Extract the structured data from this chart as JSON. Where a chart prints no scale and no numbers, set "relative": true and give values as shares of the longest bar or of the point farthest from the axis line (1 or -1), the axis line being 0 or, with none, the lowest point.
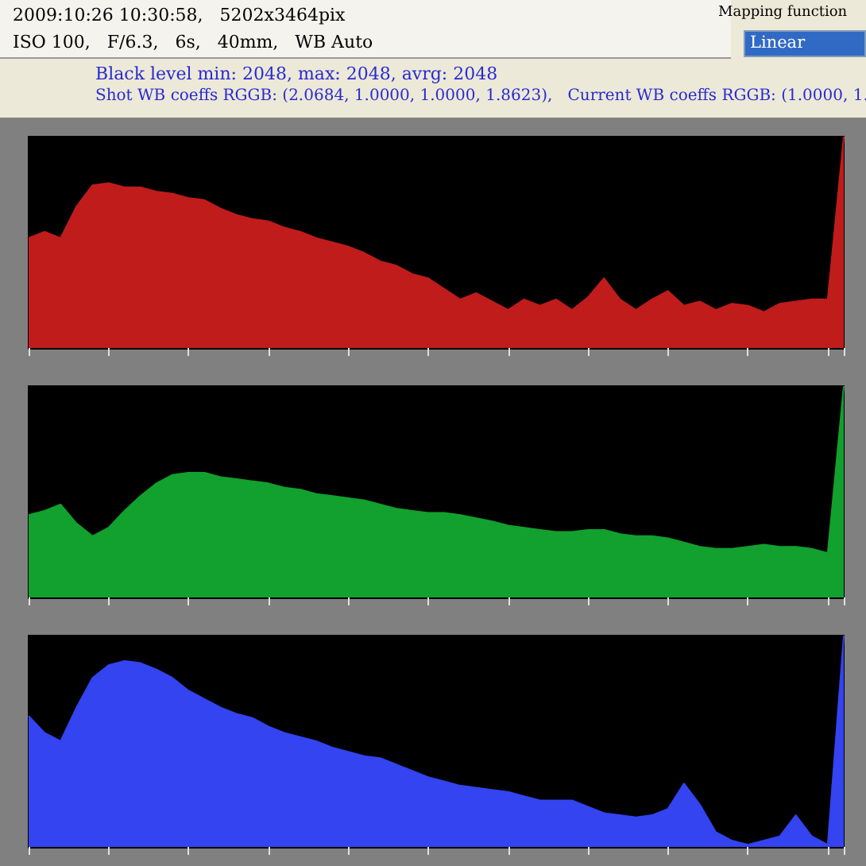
{
  "chart_data": [
    {
      "type": "other",
      "annotations": [
        "2009:10:26 10:30:58,   5202x3464pix",
        "ISO 100,   F/6.3,   6s,   40mm,   WB Auto",
        "Black level min: 2048, max: 2048, avrg: 2048",
        "Shot WB coeffs RGGB: (2.0684, 1.0000, 1.0000, 1.8623),   Current WB coeffs RGGB: (1.0000, 1.",
        "Mapping function",
        "Linear"
      ]
    },
    {
      "type": "area",
      "relative": true,
      "tick_labels": false,
      "categories": [
        null,
        null,
        null,
        null,
        null,
        null,
        null,
        null,
        null,
        null,
        null,
        null,
        null,
        null,
        null,
        null,
        null,
        null,
        null,
        null,
        null,
        null,
        null,
        null,
        null,
        null,
        null,
        null,
        null,
        null,
        null,
        null,
        null,
        null,
        null,
        null,
        null,
        null,
        null,
        null,
        null,
        null,
        null,
        null,
        null,
        null,
        null,
        null,
        null,
        null,
        null,
        null
      ],
      "series": [
        {
          "color": "#c01c1c",
          "values": [
            0.52,
            0.55,
            0.52,
            0.67,
            0.77,
            0.78,
            0.76,
            0.76,
            0.74,
            0.73,
            0.71,
            0.7,
            0.66,
            0.63,
            0.61,
            0.6,
            0.57,
            0.55,
            0.52,
            0.5,
            0.48,
            0.45,
            0.41,
            0.39,
            0.35,
            0.33,
            0.28,
            0.23,
            0.26,
            0.22,
            0.18,
            0.23,
            0.2,
            0.23,
            0.18,
            0.24,
            0.33,
            0.23,
            0.18,
            0.23,
            0.27,
            0.2,
            0.22,
            0.18,
            0.21,
            0.2,
            0.17,
            0.21,
            0.22,
            0.23,
            0.23,
            1
          ]
        }
      ]
    },
    {
      "type": "area",
      "relative": true,
      "tick_labels": false,
      "categories": [
        null,
        null,
        null,
        null,
        null,
        null,
        null,
        null,
        null,
        null,
        null,
        null,
        null,
        null,
        null,
        null,
        null,
        null,
        null,
        null,
        null,
        null,
        null,
        null,
        null,
        null,
        null,
        null,
        null,
        null,
        null,
        null,
        null,
        null,
        null,
        null,
        null,
        null,
        null,
        null,
        null,
        null,
        null,
        null,
        null,
        null,
        null,
        null,
        null,
        null,
        null,
        null
      ],
      "series": [
        {
          "color": "#12a02e",
          "values": [
            0.39,
            0.41,
            0.44,
            0.35,
            0.29,
            0.33,
            0.41,
            0.48,
            0.54,
            0.58,
            0.59,
            0.59,
            0.57,
            0.56,
            0.55,
            0.54,
            0.52,
            0.51,
            0.49,
            0.48,
            0.47,
            0.46,
            0.44,
            0.42,
            0.41,
            0.4,
            0.4,
            0.39,
            0.375,
            0.36,
            0.34,
            0.33,
            0.32,
            0.31,
            0.31,
            0.32,
            0.32,
            0.3,
            0.29,
            0.29,
            0.28,
            0.26,
            0.24,
            0.23,
            0.23,
            0.24,
            0.25,
            0.24,
            0.24,
            0.23,
            0.21,
            1
          ]
        }
      ]
    },
    {
      "type": "area",
      "relative": true,
      "tick_labels": false,
      "categories": [
        null,
        null,
        null,
        null,
        null,
        null,
        null,
        null,
        null,
        null,
        null,
        null,
        null,
        null,
        null,
        null,
        null,
        null,
        null,
        null,
        null,
        null,
        null,
        null,
        null,
        null,
        null,
        null,
        null,
        null,
        null,
        null,
        null,
        null,
        null,
        null,
        null,
        null,
        null,
        null,
        null,
        null,
        null,
        null,
        null,
        null,
        null,
        null,
        null,
        null,
        null,
        null
      ],
      "series": [
        {
          "color": "#3344f0",
          "values": [
            0.62,
            0.54,
            0.5,
            0.66,
            0.8,
            0.86,
            0.88,
            0.87,
            0.84,
            0.8,
            0.74,
            0.7,
            0.66,
            0.63,
            0.61,
            0.57,
            0.54,
            0.52,
            0.5,
            0.47,
            0.45,
            0.43,
            0.42,
            0.39,
            0.36,
            0.33,
            0.31,
            0.29,
            0.28,
            0.27,
            0.26,
            0.24,
            0.22,
            0.22,
            0.22,
            0.19,
            0.16,
            0.15,
            0.14,
            0.15,
            0.18,
            0.3,
            0.2,
            0.07,
            0.03,
            0.01,
            0.03,
            0.05,
            0.15,
            0.05,
            0.01,
            1
          ]
        }
      ]
    }
  ]
}
